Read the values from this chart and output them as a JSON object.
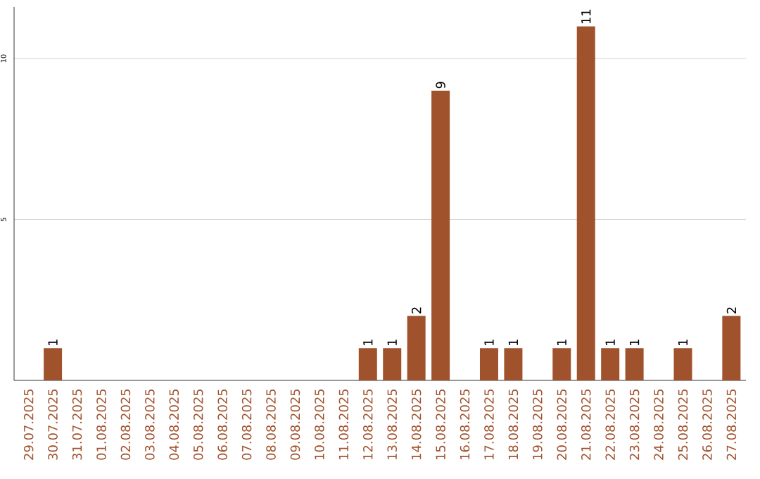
{
  "chart_data": {
    "type": "bar",
    "color": "#a0522d",
    "categories": [
      "29.07.2025",
      "30.07.2025",
      "31.07.2025",
      "01.08.2025",
      "02.08.2025",
      "03.08.2025",
      "04.08.2025",
      "05.08.2025",
      "06.08.2025",
      "07.08.2025",
      "08.08.2025",
      "09.08.2025",
      "10.08.2025",
      "11.08.2025",
      "12.08.2025",
      "13.08.2025",
      "14.08.2025",
      "15.08.2025",
      "16.08.2025",
      "17.08.2025",
      "18.08.2025",
      "19.08.2025",
      "20.08.2025",
      "21.08.2025",
      "22.08.2025",
      "23.08.2025",
      "24.08.2025",
      "25.08.2025",
      "26.08.2025",
      "27.08.2025"
    ],
    "values": [
      0,
      1,
      0,
      0,
      0,
      0,
      0,
      0,
      0,
      0,
      0,
      0,
      0,
      0,
      1,
      1,
      2,
      9,
      0,
      1,
      1,
      0,
      1,
      11,
      1,
      1,
      0,
      1,
      0,
      2
    ],
    "value_labels": [
      null,
      "1",
      null,
      null,
      null,
      null,
      null,
      null,
      null,
      null,
      null,
      null,
      null,
      null,
      "1",
      "1",
      "2",
      "9",
      null,
      "1",
      "1",
      null,
      "1",
      "11",
      "1",
      "1",
      null,
      "1",
      null,
      "2"
    ],
    "ylim": [
      0,
      11.6
    ],
    "yticks": [
      5,
      10
    ],
    "grid": "y"
  }
}
